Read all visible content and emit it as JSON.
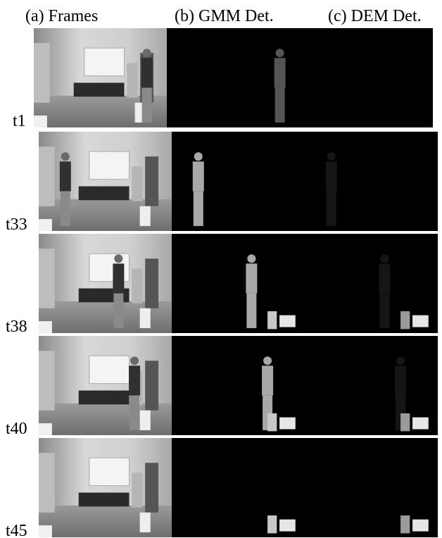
{
  "headers": [
    "(a) Frames",
    "(b) GMM Det.",
    "(c) DEM Det."
  ],
  "rows": [
    {
      "label": "t1"
    },
    {
      "label": "t33"
    },
    {
      "label": "t38"
    },
    {
      "label": "t40"
    },
    {
      "label": "t45"
    }
  ]
}
